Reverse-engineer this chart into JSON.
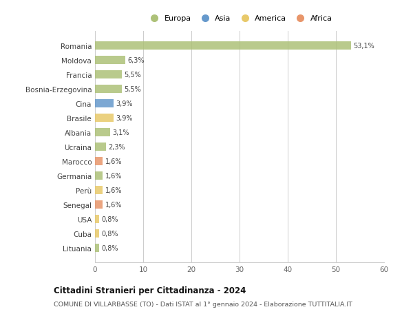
{
  "countries": [
    "Romania",
    "Moldova",
    "Francia",
    "Bosnia-Erzegovina",
    "Cina",
    "Brasile",
    "Albania",
    "Ucraina",
    "Marocco",
    "Germania",
    "Perù",
    "Senegal",
    "USA",
    "Cuba",
    "Lituania"
  ],
  "values": [
    53.1,
    6.3,
    5.5,
    5.5,
    3.9,
    3.9,
    3.1,
    2.3,
    1.6,
    1.6,
    1.6,
    1.6,
    0.8,
    0.8,
    0.8
  ],
  "labels": [
    "53,1%",
    "6,3%",
    "5,5%",
    "5,5%",
    "3,9%",
    "3,9%",
    "3,1%",
    "2,3%",
    "1,6%",
    "1,6%",
    "1,6%",
    "1,6%",
    "0,8%",
    "0,8%",
    "0,8%"
  ],
  "continents": [
    "Europa",
    "Europa",
    "Europa",
    "Europa",
    "Asia",
    "America",
    "Europa",
    "Europa",
    "Africa",
    "Europa",
    "America",
    "Africa",
    "America",
    "America",
    "Europa"
  ],
  "continent_colors": {
    "Europa": "#adc178",
    "Asia": "#6699cc",
    "America": "#e8c96a",
    "Africa": "#e8956a"
  },
  "legend_entries": [
    "Europa",
    "Asia",
    "America",
    "Africa"
  ],
  "legend_colors": [
    "#adc178",
    "#6699cc",
    "#e8c96a",
    "#e8956a"
  ],
  "title": "Cittadini Stranieri per Cittadinanza - 2024",
  "subtitle": "COMUNE DI VILLARBASSE (TO) - Dati ISTAT al 1° gennaio 2024 - Elaborazione TUTTITALIA.IT",
  "xlim": [
    0,
    60
  ],
  "xticks": [
    0,
    10,
    20,
    30,
    40,
    50,
    60
  ],
  "background_color": "#ffffff",
  "grid_color": "#cccccc",
  "bar_height": 0.55
}
